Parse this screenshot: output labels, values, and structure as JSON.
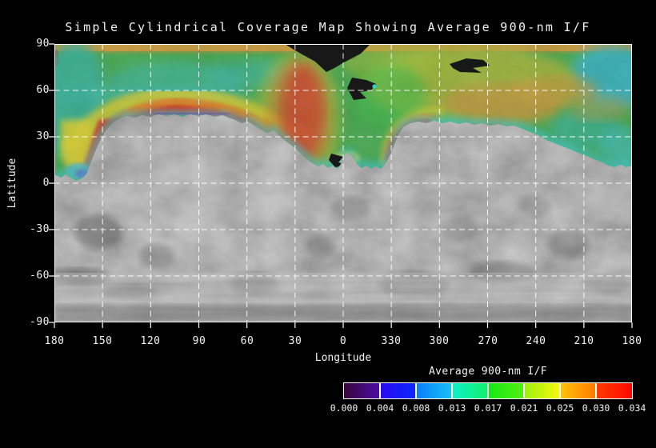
{
  "figure": {
    "title": "Simple Cylindrical Coverage Map Showing Average 900-nm I/F"
  },
  "axes": {
    "y": {
      "label": "Latitude",
      "ticks": [
        "90",
        "60",
        "30",
        "0",
        "-30",
        "-60",
        "-90"
      ]
    },
    "x": {
      "label": "Longitude",
      "ticks": [
        "180",
        "150",
        "120",
        "90",
        "60",
        "30",
        "0",
        "330",
        "300",
        "270",
        "240",
        "210",
        "180"
      ]
    }
  },
  "colorbar": {
    "title": "Average 900-nm I/F",
    "tick_labels": [
      "0.000",
      "0.004",
      "0.008",
      "0.013",
      "0.017",
      "0.021",
      "0.025",
      "0.030",
      "0.034"
    ],
    "segments": [
      {
        "from": "#3A0538",
        "to": "#4C0CA8"
      },
      {
        "from": "#2A0AEE",
        "to": "#0A28FF"
      },
      {
        "from": "#0A7CFA",
        "to": "#18C2FA"
      },
      {
        "from": "#10F0C8",
        "to": "#10F06A"
      },
      {
        "from": "#14E814",
        "to": "#55EE10"
      },
      {
        "from": "#9AF010",
        "to": "#F8F80C"
      },
      {
        "from": "#FFC40A",
        "to": "#FF7A00"
      },
      {
        "from": "#FF3C00",
        "to": "#FF0600"
      }
    ]
  },
  "palette": {
    "background": "#000000",
    "text": "#f2f2f2",
    "grid": "#ffffff",
    "terrain_gray": "#6f6f6f",
    "coverage_base_green": "#3EA849",
    "no_data_black": "#181818",
    "fringe_blue": "#3A46D8",
    "fringe_purple": "#6B2FB5",
    "high_red": "#D42817",
    "band_orange": "#E2731C",
    "band_yellow": "#D9CE28",
    "teal": "#2FB39B",
    "olive": "#A9B52F",
    "tan": "#BD9634"
  },
  "chart_data": {
    "type": "heatmap",
    "title": "Simple Cylindrical Coverage Map Showing Average 900-nm I/F",
    "xlabel": "Longitude",
    "ylabel": "Latitude",
    "x_tick_labels": [
      "180",
      "150",
      "120",
      "90",
      "60",
      "30",
      "0",
      "330",
      "300",
      "270",
      "240",
      "210",
      "180"
    ],
    "y_ticks": [
      90,
      60,
      30,
      0,
      -30,
      -60,
      -90
    ],
    "x_range": "360 degrees of longitude, wrapping 180 -> 0 -> 180",
    "y_range": [
      -90,
      90
    ],
    "grid": "white dashed gridlines every 30 degrees in latitude and longitude",
    "legend_position": "colorbar bottom-right below plot",
    "colorbar_values": [
      0.0,
      0.004,
      0.008,
      0.013,
      0.017,
      0.021,
      0.025,
      0.03,
      0.034
    ],
    "background_layer": "grayscale simple-cylindrical mosaic of a cratered planetary surface; southern hemisphere and two northern lobes uncovered (gray)",
    "coverage_layer": "rainbow-colored average 900-nm I/F coverage over northern latitudes, green/teal near pole grading through yellow and orange to red arcs near the southern edge, with blue/purple fringe at the lowest-value boundary and tan/olive values near 0.025-0.030 in the upper right",
    "coverage_boundary": {
      "lons": [
        180,
        150,
        120,
        90,
        60,
        30,
        0,
        330,
        300,
        270,
        240,
        210,
        180
      ],
      "south_edge_lat": [
        5,
        25,
        44,
        45,
        40,
        23,
        11,
        19,
        39,
        37,
        30,
        18,
        11
      ]
    },
    "uncovered_lobes": "two gray (no coverage) lobes reaching up to ~45N centered near lon 105 and lon 300",
    "no_data_gaps": "black gaps inside coverage: large wedge near the north pole around lon 25-355, an arrow-shaped gap near lon 288 lat 77, and a small gap near lon 25 lat 13"
  }
}
